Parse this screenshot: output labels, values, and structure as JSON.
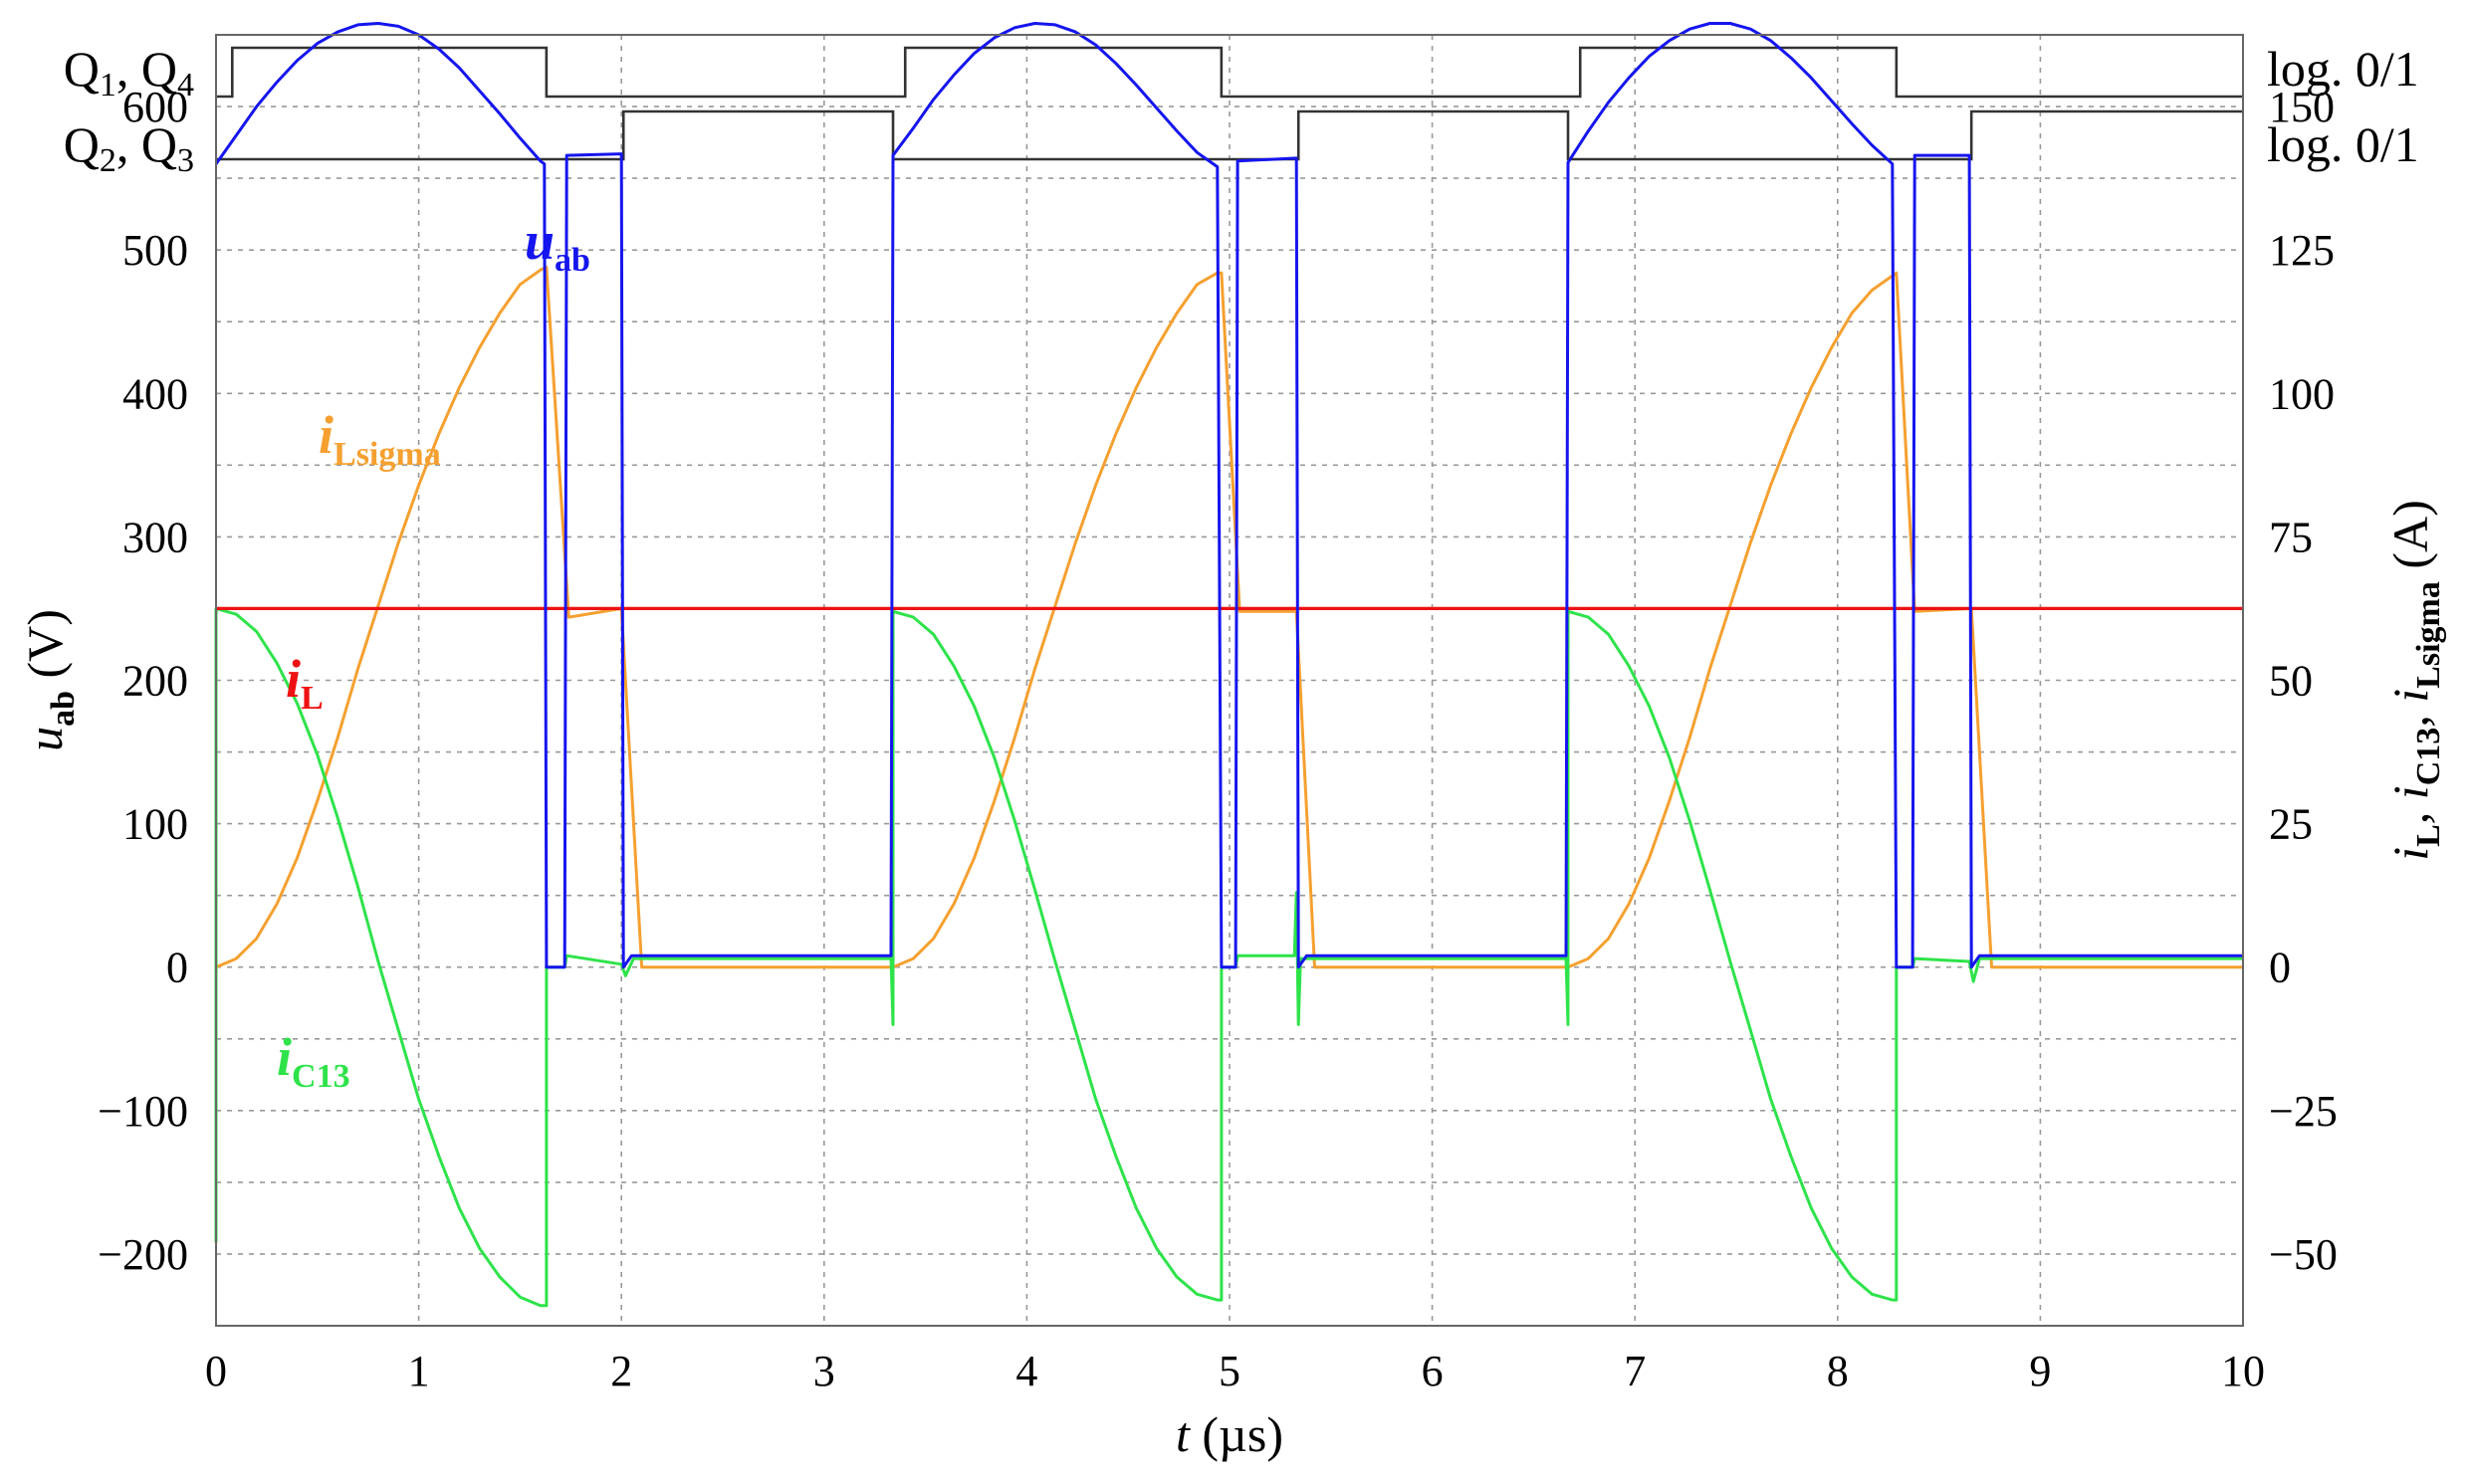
{
  "chart_data": {
    "type": "line",
    "xlabel": {
      "main": "t",
      "unit": " (µs)"
    },
    "ylabel_left": {
      "main": "u",
      "sub": "ab",
      "unit": " (V)"
    },
    "ylabel_right": {
      "p1": "i",
      "s1": "L",
      "p2": ", i",
      "s2": "C13",
      "p3": ", i",
      "s3": "Lsigma",
      "unit": " (A)"
    },
    "xlim": [
      0,
      10
    ],
    "ylim_left": [
      -250,
      650
    ],
    "ylim_right": [
      -62.5,
      162.5
    ],
    "x_ticks": [
      0,
      1,
      2,
      3,
      4,
      5,
      6,
      7,
      8,
      9,
      10
    ],
    "y_ticks_left": [
      -200,
      -100,
      0,
      100,
      200,
      300,
      400,
      500,
      600
    ],
    "y_ticks_right": [
      -50,
      -25,
      0,
      25,
      50,
      75,
      100,
      125,
      150
    ],
    "grid": true,
    "logic_traces": [
      {
        "name_main": "Q",
        "name_sub1": "1",
        "name_mid": ", Q",
        "name_sub2": "4",
        "right_label": "log. 0/1",
        "segments": [
          [
            0,
            0.08,
            0
          ],
          [
            0.08,
            1.63,
            1
          ],
          [
            1.63,
            3.4,
            0
          ],
          [
            3.4,
            4.96,
            1
          ],
          [
            4.96,
            6.73,
            0
          ],
          [
            6.73,
            8.29,
            1
          ],
          [
            8.29,
            10,
            0
          ]
        ]
      },
      {
        "name_main": "Q",
        "name_sub1": "2",
        "name_mid": ", Q",
        "name_sub2": "3",
        "right_label": "log. 0/1",
        "segments": [
          [
            0,
            2.01,
            0
          ],
          [
            2.01,
            3.34,
            1
          ],
          [
            3.34,
            5.34,
            0
          ],
          [
            5.34,
            6.67,
            1
          ],
          [
            6.67,
            8.66,
            0
          ],
          [
            8.66,
            10,
            1
          ]
        ]
      }
    ],
    "series": [
      {
        "name": "u_ab",
        "label_main": "u",
        "label_sub": "ab",
        "axis": "left",
        "color": "#1515ee",
        "points": [
          [
            0,
            560
          ],
          [
            0.1,
            580
          ],
          [
            0.2,
            600
          ],
          [
            0.3,
            617
          ],
          [
            0.4,
            632
          ],
          [
            0.5,
            644
          ],
          [
            0.6,
            652
          ],
          [
            0.7,
            657
          ],
          [
            0.8,
            658
          ],
          [
            0.9,
            656
          ],
          [
            1.0,
            650
          ],
          [
            1.1,
            640
          ],
          [
            1.2,
            627
          ],
          [
            1.3,
            611
          ],
          [
            1.4,
            595
          ],
          [
            1.5,
            578
          ],
          [
            1.6,
            562
          ],
          [
            1.62,
            560
          ],
          [
            1.63,
            0
          ],
          [
            1.72,
            0
          ],
          [
            1.73,
            566
          ],
          [
            2.0,
            567
          ],
          [
            2.01,
            0
          ],
          [
            2.05,
            8
          ],
          [
            3.33,
            8
          ],
          [
            3.34,
            566
          ],
          [
            3.44,
            585
          ],
          [
            3.54,
            605
          ],
          [
            3.64,
            622
          ],
          [
            3.74,
            637
          ],
          [
            3.84,
            648
          ],
          [
            3.94,
            655
          ],
          [
            4.04,
            658
          ],
          [
            4.14,
            657
          ],
          [
            4.24,
            652
          ],
          [
            4.34,
            643
          ],
          [
            4.44,
            630
          ],
          [
            4.54,
            615
          ],
          [
            4.64,
            599
          ],
          [
            4.74,
            583
          ],
          [
            4.84,
            568
          ],
          [
            4.94,
            558
          ],
          [
            4.96,
            0
          ],
          [
            5.03,
            0
          ],
          [
            5.04,
            562
          ],
          [
            5.33,
            564
          ],
          [
            5.34,
            0
          ],
          [
            5.38,
            8
          ],
          [
            6.66,
            8
          ],
          [
            6.67,
            561
          ],
          [
            6.77,
            583
          ],
          [
            6.87,
            603
          ],
          [
            6.97,
            620
          ],
          [
            7.07,
            635
          ],
          [
            7.17,
            646
          ],
          [
            7.27,
            654
          ],
          [
            7.37,
            658
          ],
          [
            7.47,
            658
          ],
          [
            7.57,
            654
          ],
          [
            7.67,
            646
          ],
          [
            7.77,
            634
          ],
          [
            7.87,
            620
          ],
          [
            7.97,
            604
          ],
          [
            8.07,
            588
          ],
          [
            8.17,
            573
          ],
          [
            8.27,
            560
          ],
          [
            8.29,
            0
          ],
          [
            8.37,
            0
          ],
          [
            8.38,
            566
          ],
          [
            8.65,
            566
          ],
          [
            8.66,
            0
          ],
          [
            8.7,
            8
          ],
          [
            10,
            8
          ]
        ]
      },
      {
        "name": "i_L",
        "label_main": "i",
        "label_sub": "L",
        "axis": "right",
        "color": "#ee1111",
        "points": [
          [
            0,
            62.5
          ],
          [
            10,
            62.5
          ]
        ]
      },
      {
        "name": "i_Lsigma",
        "label_main": "i",
        "label_sub": "Lsigma",
        "axis": "right",
        "color": "#f5a030",
        "points": [
          [
            0,
            0
          ],
          [
            0.1,
            1.5
          ],
          [
            0.2,
            5
          ],
          [
            0.3,
            11
          ],
          [
            0.4,
            19
          ],
          [
            0.5,
            29
          ],
          [
            0.6,
            40
          ],
          [
            0.7,
            52
          ],
          [
            0.8,
            63
          ],
          [
            0.9,
            74
          ],
          [
            1.0,
            84
          ],
          [
            1.1,
            93
          ],
          [
            1.2,
            101
          ],
          [
            1.3,
            108
          ],
          [
            1.4,
            114
          ],
          [
            1.5,
            119
          ],
          [
            1.6,
            121.5
          ],
          [
            1.63,
            122
          ],
          [
            1.74,
            61
          ],
          [
            2.0,
            62.5
          ],
          [
            2.1,
            0
          ],
          [
            3.34,
            0
          ],
          [
            3.44,
            1.5
          ],
          [
            3.54,
            5
          ],
          [
            3.64,
            11
          ],
          [
            3.74,
            19
          ],
          [
            3.84,
            29
          ],
          [
            3.94,
            40
          ],
          [
            4.04,
            52
          ],
          [
            4.14,
            63
          ],
          [
            4.24,
            74
          ],
          [
            4.34,
            84
          ],
          [
            4.44,
            93
          ],
          [
            4.54,
            101
          ],
          [
            4.64,
            108
          ],
          [
            4.74,
            114
          ],
          [
            4.84,
            119
          ],
          [
            4.94,
            121
          ],
          [
            4.96,
            121
          ],
          [
            5.05,
            62
          ],
          [
            5.33,
            62
          ],
          [
            5.42,
            0
          ],
          [
            6.67,
            0
          ],
          [
            6.77,
            1.5
          ],
          [
            6.87,
            5
          ],
          [
            6.97,
            11
          ],
          [
            7.07,
            19
          ],
          [
            7.17,
            29
          ],
          [
            7.27,
            40
          ],
          [
            7.37,
            52
          ],
          [
            7.47,
            63
          ],
          [
            7.57,
            74
          ],
          [
            7.67,
            84
          ],
          [
            7.77,
            93
          ],
          [
            7.87,
            101
          ],
          [
            7.97,
            108
          ],
          [
            8.07,
            114
          ],
          [
            8.17,
            118
          ],
          [
            8.27,
            120.5
          ],
          [
            8.29,
            121
          ],
          [
            8.38,
            62
          ],
          [
            8.66,
            62.5
          ],
          [
            8.76,
            0
          ],
          [
            10,
            0
          ]
        ]
      },
      {
        "name": "i_C13",
        "label_main": "i",
        "label_sub": "C13",
        "axis": "right",
        "color": "#2ee34a",
        "points": [
          [
            0,
            -48
          ],
          [
            0.0,
            62.5
          ],
          [
            0.1,
            61.5
          ],
          [
            0.2,
            58.5
          ],
          [
            0.3,
            53
          ],
          [
            0.4,
            46
          ],
          [
            0.5,
            37
          ],
          [
            0.6,
            26
          ],
          [
            0.7,
            14
          ],
          [
            0.8,
            1
          ],
          [
            0.9,
            -11
          ],
          [
            1.0,
            -23
          ],
          [
            1.1,
            -33
          ],
          [
            1.2,
            -42
          ],
          [
            1.3,
            -49
          ],
          [
            1.4,
            -54
          ],
          [
            1.5,
            -57.5
          ],
          [
            1.6,
            -59
          ],
          [
            1.63,
            -59
          ],
          [
            1.63,
            0
          ],
          [
            1.72,
            0
          ],
          [
            1.73,
            2
          ],
          [
            2.0,
            0.5
          ],
          [
            2.02,
            -1.5
          ],
          [
            2.06,
            1.5
          ],
          [
            3.33,
            1.5
          ],
          [
            3.34,
            -10
          ],
          [
            3.34,
            62
          ],
          [
            3.44,
            61
          ],
          [
            3.54,
            58
          ],
          [
            3.64,
            52.5
          ],
          [
            3.74,
            45.5
          ],
          [
            3.84,
            36.5
          ],
          [
            3.94,
            25.5
          ],
          [
            4.04,
            13.5
          ],
          [
            4.14,
            1
          ],
          [
            4.24,
            -11
          ],
          [
            4.34,
            -23
          ],
          [
            4.44,
            -33
          ],
          [
            4.54,
            -42
          ],
          [
            4.64,
            -49
          ],
          [
            4.74,
            -54
          ],
          [
            4.84,
            -57
          ],
          [
            4.94,
            -58
          ],
          [
            4.96,
            -58
          ],
          [
            4.96,
            0
          ],
          [
            5.03,
            0
          ],
          [
            5.04,
            2
          ],
          [
            5.32,
            2
          ],
          [
            5.33,
            13
          ],
          [
            5.34,
            -10
          ],
          [
            5.35,
            1.5
          ],
          [
            6.66,
            1.5
          ],
          [
            6.67,
            -10
          ],
          [
            6.67,
            62
          ],
          [
            6.77,
            61
          ],
          [
            6.87,
            58
          ],
          [
            6.97,
            52.5
          ],
          [
            7.07,
            45.5
          ],
          [
            7.17,
            36.5
          ],
          [
            7.27,
            25.5
          ],
          [
            7.37,
            13.5
          ],
          [
            7.47,
            1
          ],
          [
            7.57,
            -11
          ],
          [
            7.67,
            -23
          ],
          [
            7.77,
            -33
          ],
          [
            7.87,
            -42
          ],
          [
            7.97,
            -49
          ],
          [
            8.07,
            -54
          ],
          [
            8.17,
            -57
          ],
          [
            8.27,
            -58
          ],
          [
            8.29,
            -58
          ],
          [
            8.29,
            0
          ],
          [
            8.37,
            0
          ],
          [
            8.38,
            1.5
          ],
          [
            8.65,
            1
          ],
          [
            8.67,
            -2.5
          ],
          [
            8.7,
            1.5
          ],
          [
            10,
            1.5
          ]
        ]
      }
    ]
  }
}
